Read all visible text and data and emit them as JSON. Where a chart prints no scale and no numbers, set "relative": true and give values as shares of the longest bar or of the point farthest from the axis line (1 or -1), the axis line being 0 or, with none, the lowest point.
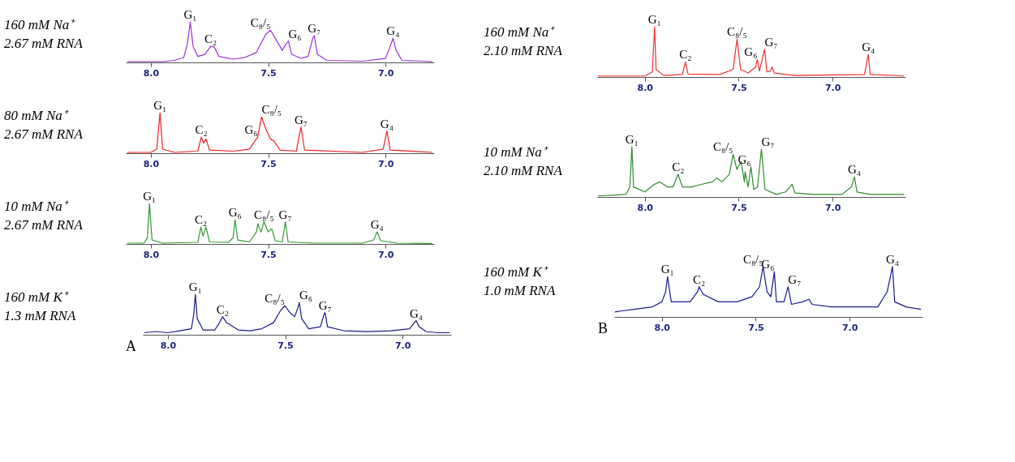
{
  "chart_data": [
    {
      "type": "line",
      "relative": true,
      "title": "160 mM Na⁺",
      "subtitle": "2.67 mM RNA",
      "color": "#9b30d9",
      "xlim": [
        8.107,
        6.793
      ],
      "xticks": [
        {
          "value": 8.0,
          "label": "8.0"
        },
        {
          "value": 7.5,
          "label": "7.5"
        },
        {
          "value": 7.0,
          "label": "7.0"
        }
      ],
      "grid": false,
      "x": [
        8.1,
        7.95,
        7.9,
        7.86,
        7.845,
        7.832,
        7.82,
        7.8,
        7.77,
        7.745,
        7.73,
        7.71,
        7.65,
        7.6,
        7.55,
        7.51,
        7.49,
        7.46,
        7.44,
        7.425,
        7.414,
        7.4,
        7.36,
        7.33,
        7.31,
        7.304,
        7.29,
        7.25,
        7.1,
        7.0,
        6.98,
        6.968,
        6.955,
        6.93,
        6.8
      ],
      "values": [
        0.02,
        0.02,
        0.05,
        0.12,
        0.45,
        1.0,
        0.4,
        0.15,
        0.2,
        0.4,
        0.38,
        0.15,
        0.08,
        0.12,
        0.25,
        0.7,
        0.8,
        0.5,
        0.3,
        0.45,
        0.53,
        0.2,
        0.1,
        0.15,
        0.6,
        0.67,
        0.2,
        0.05,
        0.03,
        0.1,
        0.4,
        0.6,
        0.3,
        0.05,
        0.02
      ],
      "annotations": [
        {
          "text": "G₁",
          "x": 7.832,
          "y": 1.0
        },
        {
          "text": "C₂",
          "x": 7.745,
          "y": 0.4
        },
        {
          "text": "C₈/₅",
          "x": 7.49,
          "y": 0.8
        },
        {
          "text": "G₆",
          "x": 7.414,
          "y": 0.53
        },
        {
          "text": "G₇",
          "x": 7.304,
          "y": 0.67
        },
        {
          "text": "G₄",
          "x": 6.968,
          "y": 0.6
        }
      ]
    },
    {
      "type": "line",
      "relative": true,
      "title": "80 mM Na⁺",
      "subtitle": "2.67 mM RNA",
      "color": "#f02020",
      "xlim": [
        8.107,
        6.793
      ],
      "xticks": [
        {
          "value": 8.0,
          "label": "8.0"
        },
        {
          "value": 7.5,
          "label": "7.5"
        },
        {
          "value": 7.0,
          "label": "7.0"
        }
      ],
      "grid": false,
      "x": [
        8.1,
        8.0,
        7.975,
        7.961,
        7.95,
        7.9,
        7.8,
        7.785,
        7.775,
        7.765,
        7.75,
        7.65,
        7.58,
        7.545,
        7.528,
        7.51,
        7.49,
        7.475,
        7.45,
        7.38,
        7.36,
        7.345,
        7.1,
        7.01,
        6.994,
        6.98,
        6.8
      ],
      "values": [
        0.02,
        0.02,
        0.1,
        1.0,
        0.1,
        0.02,
        0.05,
        0.4,
        0.25,
        0.35,
        0.08,
        0.05,
        0.1,
        0.4,
        0.9,
        0.6,
        0.35,
        0.3,
        0.08,
        0.05,
        0.65,
        0.08,
        0.02,
        0.1,
        0.55,
        0.08,
        0.02
      ],
      "annotations": [
        {
          "text": "G₁",
          "x": 7.961,
          "y": 1.0
        },
        {
          "text": "C₂",
          "x": 7.785,
          "y": 0.4
        },
        {
          "text": "G₆",
          "x": 7.545,
          "y": 0.4
        },
        {
          "text": "C₈/₅",
          "x": 7.528,
          "y": 0.9
        },
        {
          "text": "G₇",
          "x": 7.36,
          "y": 0.65
        },
        {
          "text": "G₄",
          "x": 6.994,
          "y": 0.55
        }
      ]
    },
    {
      "type": "line",
      "relative": true,
      "title": "10 mM Na⁺",
      "subtitle": "2.67 mM RNA",
      "color": "#2e9a2e",
      "xlim": [
        8.107,
        6.793
      ],
      "xticks": [
        {
          "value": 8.0,
          "label": "8.0"
        },
        {
          "value": 7.5,
          "label": "7.5"
        },
        {
          "value": 7.0,
          "label": "7.0"
        }
      ],
      "grid": false,
      "x": [
        8.1,
        8.03,
        8.015,
        8.006,
        7.995,
        7.95,
        7.8,
        7.787,
        7.778,
        7.765,
        7.75,
        7.67,
        7.65,
        7.641,
        7.63,
        7.58,
        7.55,
        7.544,
        7.53,
        7.518,
        7.5,
        7.485,
        7.47,
        7.44,
        7.427,
        7.415,
        7.3,
        7.1,
        7.05,
        7.036,
        7.02,
        6.95,
        6.8
      ],
      "values": [
        0.02,
        0.02,
        0.15,
        1.0,
        0.1,
        0.02,
        0.04,
        0.42,
        0.2,
        0.42,
        0.05,
        0.04,
        0.15,
        0.6,
        0.1,
        0.05,
        0.3,
        0.5,
        0.3,
        0.55,
        0.3,
        0.38,
        0.08,
        0.05,
        0.55,
        0.05,
        0.02,
        0.02,
        0.1,
        0.3,
        0.08,
        0.02,
        0.01
      ],
      "annotations": [
        {
          "text": "G₁",
          "x": 8.006,
          "y": 1.0
        },
        {
          "text": "C₂",
          "x": 7.787,
          "y": 0.42
        },
        {
          "text": "G₆",
          "x": 7.641,
          "y": 0.6
        },
        {
          "text": "C₈/₅",
          "x": 7.518,
          "y": 0.55
        },
        {
          "text": "G₇",
          "x": 7.427,
          "y": 0.55
        },
        {
          "text": "G₄",
          "x": 7.036,
          "y": 0.3
        }
      ]
    },
    {
      "type": "line",
      "relative": true,
      "title": "160 mM K⁺",
      "subtitle": "1.3 mM RNA",
      "color": "#1a1a8c",
      "xlim": [
        8.107,
        6.793
      ],
      "xticks": [
        {
          "value": 8.0,
          "label": "8.0"
        },
        {
          "value": 7.5,
          "label": "7.5"
        },
        {
          "value": 7.0,
          "label": "7.0"
        }
      ],
      "tick_labels": "x",
      "grid": false,
      "x": [
        8.1,
        8.05,
        8.0,
        7.95,
        7.9,
        7.89,
        7.883,
        7.875,
        7.85,
        7.8,
        7.78,
        7.767,
        7.75,
        7.7,
        7.65,
        7.6,
        7.55,
        7.52,
        7.502,
        7.48,
        7.46,
        7.447,
        7.44,
        7.43,
        7.4,
        7.35,
        7.335,
        7.33,
        7.32,
        7.25,
        7.15,
        7.05,
        6.97,
        6.95,
        6.942,
        6.93,
        6.9,
        6.85,
        6.8
      ],
      "values": [
        0.05,
        0.08,
        0.05,
        0.1,
        0.15,
        0.5,
        1.0,
        0.4,
        0.12,
        0.12,
        0.3,
        0.45,
        0.3,
        0.12,
        0.1,
        0.15,
        0.3,
        0.6,
        0.72,
        0.55,
        0.45,
        0.65,
        0.8,
        0.4,
        0.15,
        0.2,
        0.5,
        0.55,
        0.2,
        0.1,
        0.08,
        0.1,
        0.15,
        0.3,
        0.35,
        0.2,
        0.08,
        0.05,
        0.05
      ],
      "annotations": [
        {
          "text": "G₁",
          "x": 7.883,
          "y": 1.0
        },
        {
          "text": "C₂",
          "x": 7.767,
          "y": 0.45
        },
        {
          "text": "C₈/₅",
          "x": 7.502,
          "y": 0.72
        },
        {
          "text": "G₆",
          "x": 7.44,
          "y": 0.8
        },
        {
          "text": "G₇",
          "x": 7.33,
          "y": 0.55
        },
        {
          "text": "G₄",
          "x": 6.942,
          "y": 0.35
        },
        "A"
      ]
    },
    {
      "type": "line",
      "relative": true,
      "title": "160 mM Na⁺",
      "subtitle": "2.10 mM RNA",
      "color": "#f03030",
      "xlim": [
        8.254,
        6.612
      ],
      "xticks": [
        {
          "value": 8.0,
          "label": "8.0"
        },
        {
          "value": 7.5,
          "label": "7.5"
        },
        {
          "value": 7.0,
          "label": "7.0"
        }
      ],
      "grid": false,
      "x": [
        8.25,
        8.0,
        7.96,
        7.948,
        7.94,
        7.9,
        7.8,
        7.784,
        7.77,
        7.6,
        7.53,
        7.509,
        7.49,
        7.45,
        7.41,
        7.401,
        7.39,
        7.362,
        7.35,
        7.33,
        7.323,
        7.31,
        7.2,
        6.83,
        6.81,
        6.8,
        6.62
      ],
      "values": [
        0.02,
        0.02,
        0.1,
        1.0,
        0.15,
        0.03,
        0.05,
        0.3,
        0.06,
        0.05,
        0.15,
        0.75,
        0.15,
        0.08,
        0.2,
        0.35,
        0.12,
        0.55,
        0.1,
        0.12,
        0.2,
        0.08,
        0.03,
        0.05,
        0.45,
        0.05,
        0.02
      ],
      "annotations": [
        {
          "text": "G₁",
          "x": 7.948,
          "y": 1.0
        },
        {
          "text": "C₂",
          "x": 7.784,
          "y": 0.3
        },
        {
          "text": "C₈/₅",
          "x": 7.509,
          "y": 0.75
        },
        {
          "text": "G₆",
          "x": 7.401,
          "y": 0.35
        },
        {
          "text": "G₇",
          "x": 7.362,
          "y": 0.55
        },
        {
          "text": "G₄",
          "x": 6.81,
          "y": 0.45
        }
      ]
    },
    {
      "type": "line",
      "relative": true,
      "title": "10 mM Na⁺",
      "subtitle": "2.10 mM RNA",
      "color": "#2e8b2e",
      "xlim": [
        8.254,
        6.612
      ],
      "xticks": [
        {
          "value": 8.0,
          "label": "8.0"
        },
        {
          "value": 7.5,
          "label": "7.5"
        },
        {
          "value": 7.0,
          "label": "7.0"
        }
      ],
      "grid": false,
      "x": [
        8.25,
        8.1,
        8.08,
        8.069,
        8.06,
        8.0,
        7.95,
        7.92,
        7.88,
        7.85,
        7.823,
        7.8,
        7.75,
        7.7,
        7.64,
        7.616,
        7.59,
        7.55,
        7.53,
        7.51,
        7.487,
        7.47,
        7.466,
        7.45,
        7.435,
        7.42,
        7.4,
        7.379,
        7.36,
        7.3,
        7.25,
        7.216,
        7.2,
        7.1,
        6.95,
        6.9,
        6.884,
        6.87,
        6.8,
        6.62
      ],
      "values": [
        0.02,
        0.05,
        0.2,
        1.0,
        0.2,
        0.1,
        0.25,
        0.3,
        0.2,
        0.2,
        0.45,
        0.2,
        0.2,
        0.25,
        0.3,
        0.38,
        0.3,
        0.45,
        0.85,
        0.55,
        0.7,
        0.3,
        0.5,
        0.2,
        0.6,
        0.15,
        0.2,
        0.95,
        0.15,
        0.05,
        0.1,
        0.25,
        0.08,
        0.05,
        0.05,
        0.2,
        0.4,
        0.1,
        0.05,
        0.05
      ],
      "annotations": [
        {
          "text": "G₁",
          "x": 8.069,
          "y": 1.0
        },
        {
          "text": "C₂",
          "x": 7.823,
          "y": 0.45
        },
        {
          "text": "C₈/₅",
          "x": 7.53,
          "y": 0.85
        },
        {
          "text": "G₆",
          "x": 7.435,
          "y": 0.6
        },
        {
          "text": "G₇",
          "x": 7.379,
          "y": 0.95
        },
        {
          "text": "G₄",
          "x": 6.884,
          "y": 0.4
        }
      ]
    },
    {
      "type": "line",
      "relative": true,
      "title": "160 mM K⁺",
      "subtitle": "1.0 mM RNA",
      "color": "#1a1a8c",
      "xlim": [
        8.254,
        6.612
      ],
      "xticks": [
        {
          "value": 8.0,
          "label": "8.0"
        },
        {
          "value": 7.5,
          "label": "7.5"
        },
        {
          "value": 7.0,
          "label": "7.0"
        }
      ],
      "tick_labels": "x",
      "grid": false,
      "x": [
        8.25,
        8.15,
        8.05,
        8.0,
        7.98,
        7.97,
        7.95,
        7.9,
        7.85,
        7.81,
        7.802,
        7.78,
        7.7,
        7.6,
        7.52,
        7.48,
        7.461,
        7.44,
        7.42,
        7.401,
        7.39,
        7.35,
        7.328,
        7.31,
        7.25,
        7.216,
        7.2,
        7.1,
        6.95,
        6.85,
        6.8,
        6.772,
        6.76,
        6.7,
        6.62
      ],
      "values": [
        0.1,
        0.15,
        0.2,
        0.3,
        0.5,
        0.8,
        0.3,
        0.3,
        0.3,
        0.5,
        0.6,
        0.45,
        0.3,
        0.3,
        0.4,
        0.6,
        1.0,
        0.5,
        0.4,
        0.9,
        0.3,
        0.3,
        0.6,
        0.25,
        0.3,
        0.35,
        0.25,
        0.2,
        0.2,
        0.2,
        0.5,
        1.0,
        0.3,
        0.2,
        0.15
      ],
      "annotations": [
        {
          "text": "G₁",
          "x": 7.97,
          "y": 0.8
        },
        {
          "text": "C₂",
          "x": 7.802,
          "y": 0.6
        },
        {
          "text": "C₈/₅",
          "x": 7.461,
          "y": 1.0
        },
        {
          "text": "G₆",
          "x": 7.401,
          "y": 0.9
        },
        {
          "text": "G₇",
          "x": 7.328,
          "y": 0.6
        },
        {
          "text": "G₄",
          "x": 6.772,
          "y": 1.0
        },
        "B"
      ]
    }
  ]
}
